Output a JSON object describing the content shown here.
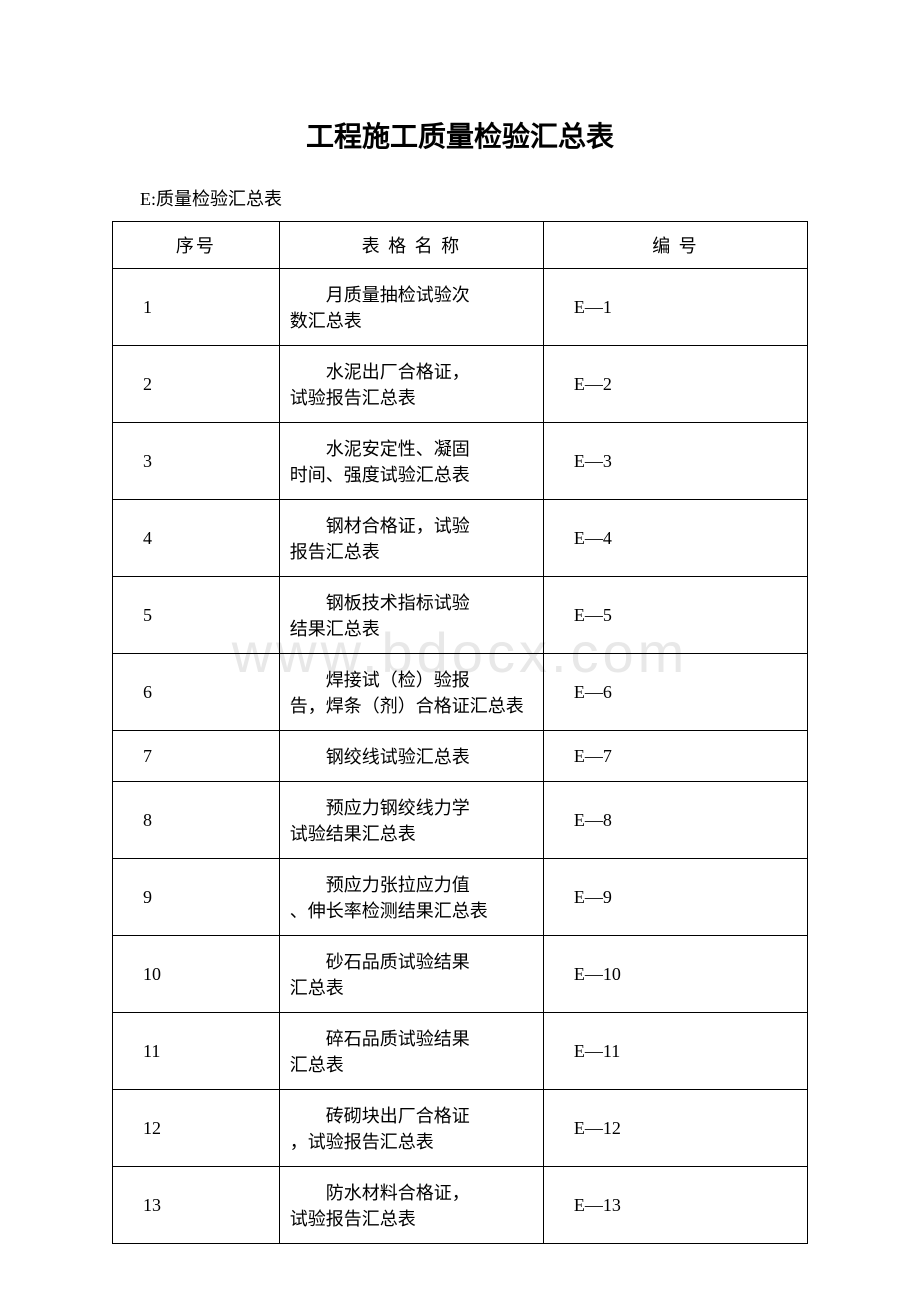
{
  "document": {
    "title": "工程施工质量检验汇总表",
    "subtitle": "E:质量检验汇总表",
    "watermark": "www.bdocx.com",
    "background_color": "#ffffff",
    "text_color": "#000000",
    "border_color": "#000000",
    "watermark_color": "#e8e8e8",
    "title_fontsize": 28,
    "body_fontsize": 18
  },
  "table": {
    "columns": [
      {
        "label": "序号",
        "width": "24%",
        "align": "center"
      },
      {
        "label": "表 格 名 称",
        "width": "38%",
        "align": "center"
      },
      {
        "label": "编 号",
        "width": "38%",
        "align": "center"
      }
    ],
    "rows": [
      {
        "seq": "1",
        "name_l1": "月质量抽检试验次",
        "name_l2": "数汇总表",
        "code": "E—1"
      },
      {
        "seq": "2",
        "name_l1": "水泥出厂合格证，",
        "name_l2": "试验报告汇总表",
        "code": "E—2"
      },
      {
        "seq": "3",
        "name_l1": "水泥安定性、凝固",
        "name_l2": "时间、强度试验汇总表",
        "code": "E—3"
      },
      {
        "seq": "4",
        "name_l1": "钢材合格证，试验",
        "name_l2": "报告汇总表",
        "code": "E—4"
      },
      {
        "seq": "5",
        "name_l1": "钢板技术指标试验",
        "name_l2": "结果汇总表",
        "code": "E—5"
      },
      {
        "seq": "6",
        "name_l1": "焊接试（检）验报",
        "name_l2": "告，焊条（剂）合格证汇总表",
        "code": "E—6"
      },
      {
        "seq": "7",
        "name_l1": "钢绞线试验汇总表",
        "name_l2": "",
        "code": "E—7"
      },
      {
        "seq": "8",
        "name_l1": "预应力钢绞线力学",
        "name_l2": "试验结果汇总表",
        "code": "E—8"
      },
      {
        "seq": "9",
        "name_l1": "预应力张拉应力值",
        "name_l2": "、伸长率检测结果汇总表",
        "code": "E—9"
      },
      {
        "seq": "10",
        "name_l1": "砂石品质试验结果",
        "name_l2": "汇总表",
        "code": "E—10"
      },
      {
        "seq": "11",
        "name_l1": "碎石品质试验结果",
        "name_l2": "汇总表",
        "code": "E—11"
      },
      {
        "seq": "12",
        "name_l1": "砖砌块出厂合格证",
        "name_l2": "，试验报告汇总表",
        "code": "E—12"
      },
      {
        "seq": "13",
        "name_l1": "防水材料合格证，",
        "name_l2": "试验报告汇总表",
        "code": "E—13"
      }
    ]
  }
}
